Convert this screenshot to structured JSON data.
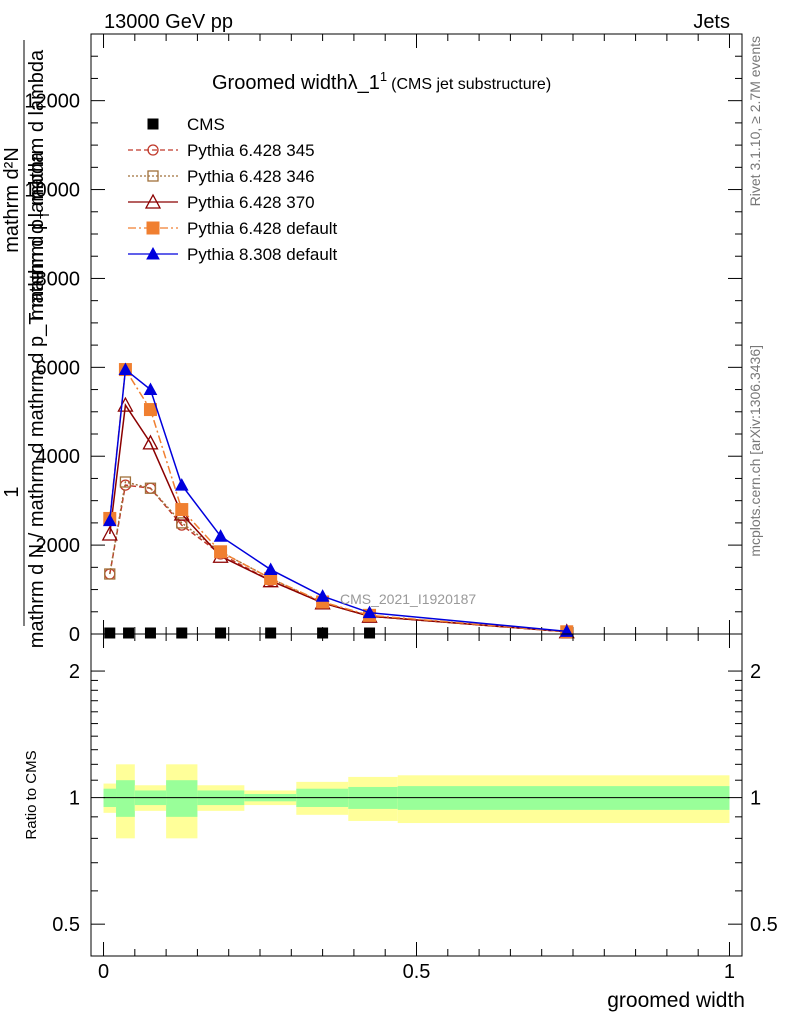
{
  "header": {
    "left": "13000 GeV pp",
    "right": "Jets"
  },
  "side_text": {
    "top": "Rivet 3.1.10, ≥ 2.7M events",
    "bottom": "mcplots.cern.ch [arXiv:1306.3436]"
  },
  "watermark": "CMS_2021_I1920187",
  "chart_data": [
    {
      "type": "line",
      "title": "Groomed width",
      "title_math": "λ_1",
      "title_sup": "1",
      "subtitle": "(CMS jet substructure)",
      "ylabel_num": "1",
      "ylabel_num2": "mathrm d²N",
      "ylabel_den": "mathrm d N / mathrm d mathrm d p_T mathrm d lambda",
      "ylabel_den_top": "mathrm d p",
      "ylabel_den_top_sub": "T",
      "ylabel_den_top_rest": " mathrm d lambda",
      "ylim": [
        0,
        13500
      ],
      "yticks": [
        0,
        2000,
        4000,
        6000,
        8000,
        10000,
        12000
      ],
      "ytick_labels": [
        "0",
        "2000",
        "4000",
        "6000",
        "8000",
        "10000",
        "12000"
      ],
      "grid": false,
      "legend_position": "top-left",
      "series": [
        {
          "name": "CMS",
          "color": "#000000",
          "x": [
            0.01,
            0.04,
            0.075,
            0.125,
            0.187,
            0.267,
            0.35,
            0.425,
            0.74
          ],
          "y": [
            0,
            0,
            0,
            0,
            0,
            0,
            0,
            0,
            0
          ]
        },
        {
          "name": "Pythia 6.428 345",
          "color": "#c0392b",
          "x": [
            0.01,
            0.035,
            0.075,
            0.125,
            0.187,
            0.267,
            0.35,
            0.425,
            0.74
          ],
          "y": [
            1350,
            3350,
            3280,
            2450,
            1800,
            1200,
            700,
            400,
            50
          ]
        },
        {
          "name": "Pythia 6.428 346",
          "color": "#a0703a",
          "x": [
            0.01,
            0.035,
            0.075,
            0.125,
            0.187,
            0.267,
            0.35,
            0.425,
            0.74
          ],
          "y": [
            1350,
            3420,
            3280,
            2500,
            1850,
            1250,
            700,
            400,
            50
          ]
        },
        {
          "name": "Pythia 6.428 370",
          "color": "#8b0000",
          "x": [
            0.01,
            0.035,
            0.075,
            0.125,
            0.187,
            0.267,
            0.35,
            0.425,
            0.74
          ],
          "y": [
            2250,
            5150,
            4300,
            2700,
            1750,
            1200,
            700,
            400,
            50
          ]
        },
        {
          "name": "Pythia 6.428 default",
          "color": "#f07f30",
          "x": [
            0.01,
            0.035,
            0.075,
            0.125,
            0.187,
            0.267,
            0.35,
            0.425,
            0.74
          ],
          "y": [
            2600,
            5950,
            5050,
            2800,
            1850,
            1250,
            720,
            420,
            50
          ]
        },
        {
          "name": "Pythia 8.308 default",
          "color": "#0000dd",
          "x": [
            0.01,
            0.035,
            0.075,
            0.125,
            0.187,
            0.267,
            0.35,
            0.425,
            0.74
          ],
          "y": [
            2550,
            5950,
            5500,
            3350,
            2200,
            1450,
            850,
            480,
            60
          ]
        }
      ]
    },
    {
      "type": "area",
      "ylabel": "Ratio to CMS",
      "xlabel": "groomed width",
      "xlim": [
        -0.02,
        1.02
      ],
      "xticks": [
        0,
        0.5,
        1
      ],
      "xtick_labels": [
        "0",
        "0.5",
        "1"
      ],
      "ylim": [
        0.42,
        2.45
      ],
      "yscale": "log",
      "yticks": [
        0.5,
        1,
        2
      ],
      "ytick_labels": [
        "0.5",
        "1",
        "2"
      ],
      "reference_line": 1,
      "bins": [
        {
          "lo": 0.0,
          "hi": 0.02,
          "stat": 0.05,
          "total": 0.08
        },
        {
          "lo": 0.02,
          "hi": 0.05,
          "stat": 0.1,
          "total": 0.2
        },
        {
          "lo": 0.05,
          "hi": 0.1,
          "stat": 0.04,
          "total": 0.07
        },
        {
          "lo": 0.1,
          "hi": 0.15,
          "stat": 0.1,
          "total": 0.2
        },
        {
          "lo": 0.15,
          "hi": 0.225,
          "stat": 0.04,
          "total": 0.07
        },
        {
          "lo": 0.225,
          "hi": 0.308,
          "stat": 0.02,
          "total": 0.04
        },
        {
          "lo": 0.308,
          "hi": 0.391,
          "stat": 0.05,
          "total": 0.09
        },
        {
          "lo": 0.391,
          "hi": 0.47,
          "stat": 0.06,
          "total": 0.12
        },
        {
          "lo": 0.47,
          "hi": 1.0,
          "stat": 0.065,
          "total": 0.13
        }
      ],
      "band_colors": {
        "stat": "#99ff99",
        "total": "#ffff99"
      }
    }
  ]
}
